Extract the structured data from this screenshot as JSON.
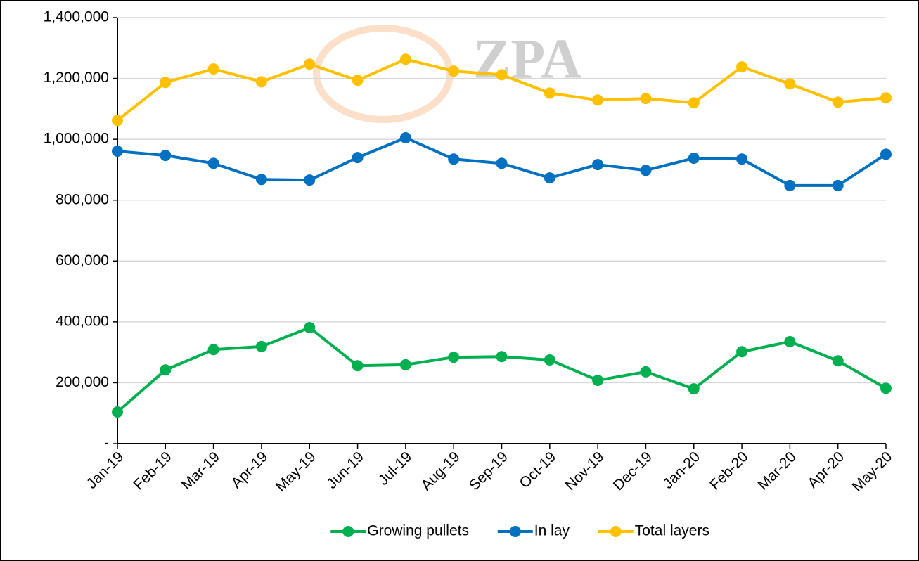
{
  "chart_data": {
    "type": "line",
    "watermark": "ZPA",
    "categories": [
      "Jan-19",
      "Feb-19",
      "Mar-19",
      "Apr-19",
      "May-19",
      "Jun-19",
      "Jul-19",
      "Aug-19",
      "Sep-19",
      "Oct-19",
      "Nov-19",
      "Dec-19",
      "Jan-20",
      "Feb-20",
      "Mar-20",
      "Apr-20",
      "May-20"
    ],
    "series": [
      {
        "name": "Growing pullets",
        "color": "#00b050",
        "values": [
          104000,
          242000,
          309000,
          319000,
          381000,
          256000,
          259000,
          284000,
          286000,
          275000,
          208000,
          236000,
          180000,
          302000,
          335000,
          272000,
          182000
        ]
      },
      {
        "name": "In lay",
        "color": "#0070c0",
        "values": [
          961000,
          947000,
          921000,
          868000,
          866000,
          940000,
          1005000,
          935000,
          921000,
          873000,
          917000,
          898000,
          938000,
          935000,
          848000,
          848000,
          951000
        ]
      },
      {
        "name": "Total layers",
        "color": "#ffc000",
        "values": [
          1062000,
          1187000,
          1231000,
          1189000,
          1247000,
          1194000,
          1263000,
          1224000,
          1212000,
          1152000,
          1129000,
          1134000,
          1120000,
          1238000,
          1182000,
          1122000,
          1136000
        ]
      }
    ],
    "ylim": [
      0,
      1400000
    ],
    "yticks": [
      {
        "value": 0,
        "label": "-"
      },
      {
        "value": 200000,
        "label": "200,000"
      },
      {
        "value": 400000,
        "label": "400,000"
      },
      {
        "value": 600000,
        "label": "600,000"
      },
      {
        "value": 800000,
        "label": "800,000"
      },
      {
        "value": 1000000,
        "label": "1,000,000"
      },
      {
        "value": 1200000,
        "label": "1,200,000"
      },
      {
        "value": 1400000,
        "label": "1,400,000"
      }
    ],
    "grid": true,
    "legend": "bottom"
  }
}
